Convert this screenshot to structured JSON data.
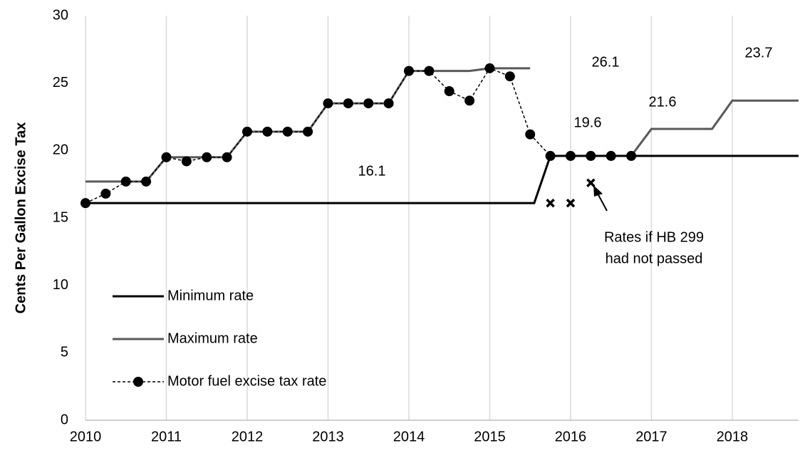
{
  "chart_data": {
    "type": "line",
    "y_label": "Cents Per Gallon Excise Tax",
    "xlim": [
      2010,
      2018.82
    ],
    "xticks": [
      2010,
      2011,
      2012,
      2013,
      2014,
      2015,
      2016,
      2017,
      2018
    ],
    "ylim": [
      0,
      30
    ],
    "yticks": [
      0,
      5,
      10,
      15,
      20,
      25,
      30
    ],
    "grid": "x",
    "legend": "lower-left",
    "series": [
      {
        "name": "Minimum rate",
        "color": "#000000",
        "dashed": false,
        "markers": false,
        "x": [
          2010,
          2015.55,
          2015.75,
          2018.82
        ],
        "values": [
          16.1,
          16.1,
          19.6,
          19.6
        ]
      },
      {
        "name": "Maximum rate",
        "color": "#595959",
        "dashed": false,
        "markers": false,
        "x": [
          2010,
          2010.75,
          2011,
          2011.75,
          2012,
          2012.75,
          2013,
          2013.75,
          2014,
          2014.75,
          2015,
          2015.5,
          2016,
          2016.75,
          2017,
          2017.75,
          2018,
          2018.82
        ],
        "values": [
          17.7,
          17.7,
          19.5,
          19.5,
          21.4,
          21.4,
          23.5,
          23.5,
          25.9,
          25.9,
          26.1,
          26.1,
          null,
          19.6,
          21.6,
          21.6,
          23.7,
          23.7
        ]
      },
      {
        "name": "Motor fuel excise tax rate",
        "color": "#000000",
        "dashed": true,
        "markers": true,
        "x": [
          2010,
          2010.25,
          2010.5,
          2010.75,
          2011,
          2011.25,
          2011.5,
          2011.75,
          2012,
          2012.25,
          2012.5,
          2012.75,
          2013,
          2013.25,
          2013.5,
          2013.75,
          2014,
          2014.25,
          2014.5,
          2014.75,
          2015,
          2015.25,
          2015.5,
          2015.75,
          2016,
          2016.25,
          2016.5,
          2016.75
        ],
        "values": [
          16.1,
          16.8,
          17.7,
          17.7,
          19.5,
          19.2,
          19.5,
          19.5,
          21.4,
          21.4,
          21.4,
          21.4,
          23.5,
          23.5,
          23.5,
          23.5,
          25.9,
          25.9,
          24.4,
          23.7,
          26.1,
          25.5,
          21.2,
          19.6,
          19.6,
          19.6,
          19.6,
          19.6
        ]
      }
    ],
    "hypothetical": {
      "x": [
        2015.75,
        2016,
        2016.25
      ],
      "values": [
        16.1,
        16.1,
        17.6
      ]
    },
    "rate_labels": [
      "26.1",
      "23.7",
      "21.6",
      "19.6",
      "16.1"
    ],
    "note": [
      "Rates if HB 299",
      "had not passed"
    ]
  }
}
